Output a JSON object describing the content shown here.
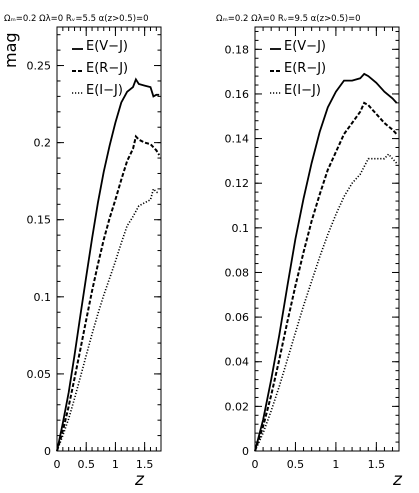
{
  "figure": {
    "ylabel": "mag",
    "xlabel": "z"
  },
  "chart_data": [
    {
      "type": "line",
      "title": "Ωₘ=0.2 Ωλ=0 Rᵥ=5.5 α(z>0.5)=0",
      "xlabel": "z",
      "ylabel": "mag",
      "xlim": [
        0,
        1.78
      ],
      "ylim": [
        0,
        0.275
      ],
      "x_ticks": [
        0,
        0.5,
        1,
        1.5
      ],
      "x_tick_labels": [
        "0",
        "0.5",
        "1",
        "1.5"
      ],
      "y_ticks": [
        0,
        0.05,
        0.1,
        0.15,
        0.2,
        0.25
      ],
      "y_tick_labels": [
        "0",
        "0.05",
        "0.1",
        "0.15",
        "0.2",
        "0.25"
      ],
      "grid": false,
      "legend_position": "top-center",
      "series": [
        {
          "name": "E(V−J)",
          "style": "solid",
          "x": [
            0,
            0.1,
            0.2,
            0.3,
            0.4,
            0.5,
            0.6,
            0.7,
            0.8,
            0.9,
            1.0,
            1.1,
            1.2,
            1.3,
            1.35,
            1.4,
            1.5,
            1.6,
            1.65,
            1.7,
            1.75
          ],
          "y": [
            0,
            0.018,
            0.038,
            0.062,
            0.088,
            0.113,
            0.138,
            0.161,
            0.181,
            0.198,
            0.213,
            0.226,
            0.233,
            0.236,
            0.241,
            0.238,
            0.237,
            0.236,
            0.23,
            0.231,
            0.231
          ]
        },
        {
          "name": "E(R−J)",
          "style": "dashed",
          "x": [
            0,
            0.1,
            0.2,
            0.3,
            0.4,
            0.5,
            0.6,
            0.7,
            0.8,
            0.9,
            1.0,
            1.1,
            1.2,
            1.3,
            1.35,
            1.4,
            1.5,
            1.6,
            1.7,
            1.75
          ],
          "y": [
            0,
            0.013,
            0.029,
            0.047,
            0.066,
            0.085,
            0.104,
            0.121,
            0.137,
            0.151,
            0.163,
            0.176,
            0.188,
            0.196,
            0.204,
            0.202,
            0.2,
            0.199,
            0.195,
            0.192
          ]
        },
        {
          "name": "E(I−J)",
          "style": "dotted",
          "x": [
            0,
            0.1,
            0.2,
            0.3,
            0.4,
            0.5,
            0.6,
            0.7,
            0.8,
            0.9,
            1.0,
            1.1,
            1.2,
            1.3,
            1.4,
            1.5,
            1.6,
            1.65,
            1.7,
            1.75
          ],
          "y": [
            0,
            0.01,
            0.021,
            0.034,
            0.048,
            0.062,
            0.076,
            0.089,
            0.101,
            0.112,
            0.123,
            0.135,
            0.146,
            0.152,
            0.159,
            0.161,
            0.163,
            0.17,
            0.168,
            0.167
          ]
        }
      ]
    },
    {
      "type": "line",
      "title": "Ωₘ=0.2 Ωλ=0 Rᵥ=9.5 α(z>0.5)=0",
      "xlabel": "z",
      "ylabel": "",
      "xlim": [
        0,
        1.78
      ],
      "ylim": [
        0,
        0.19
      ],
      "x_ticks": [
        0,
        0.5,
        1,
        1.5
      ],
      "x_tick_labels": [
        "0",
        "0.5",
        "1",
        "1.5"
      ],
      "y_ticks": [
        0,
        0.02,
        0.04,
        0.06,
        0.08,
        0.1,
        0.12,
        0.14,
        0.16,
        0.18
      ],
      "y_tick_labels": [
        "0",
        "0.02",
        "0.04",
        "0.06",
        "0.08",
        "0.1",
        "0.12",
        "0.14",
        "0.16",
        "0.18"
      ],
      "grid": false,
      "legend_position": "top-center",
      "series": [
        {
          "name": "E(V−J)",
          "style": "solid",
          "x": [
            0,
            0.1,
            0.2,
            0.3,
            0.4,
            0.5,
            0.6,
            0.7,
            0.8,
            0.9,
            1.0,
            1.1,
            1.2,
            1.3,
            1.35,
            1.4,
            1.5,
            1.6,
            1.7,
            1.75
          ],
          "y": [
            0,
            0.014,
            0.032,
            0.052,
            0.074,
            0.095,
            0.113,
            0.129,
            0.143,
            0.154,
            0.161,
            0.166,
            0.166,
            0.167,
            0.169,
            0.168,
            0.165,
            0.161,
            0.158,
            0.156
          ]
        },
        {
          "name": "E(R−J)",
          "style": "dashed",
          "x": [
            0,
            0.1,
            0.2,
            0.3,
            0.4,
            0.5,
            0.6,
            0.7,
            0.8,
            0.9,
            1.0,
            1.1,
            1.2,
            1.3,
            1.35,
            1.4,
            1.5,
            1.6,
            1.7,
            1.75
          ],
          "y": [
            0,
            0.011,
            0.025,
            0.041,
            0.058,
            0.074,
            0.089,
            0.103,
            0.115,
            0.126,
            0.134,
            0.142,
            0.147,
            0.152,
            0.156,
            0.155,
            0.151,
            0.147,
            0.144,
            0.142
          ]
        },
        {
          "name": "E(I−J)",
          "style": "dotted",
          "x": [
            0,
            0.1,
            0.2,
            0.3,
            0.4,
            0.5,
            0.6,
            0.7,
            0.8,
            0.9,
            1.0,
            1.1,
            1.2,
            1.3,
            1.4,
            1.5,
            1.6,
            1.65,
            1.7,
            1.75
          ],
          "y": [
            0,
            0.008,
            0.018,
            0.029,
            0.041,
            0.053,
            0.065,
            0.076,
            0.087,
            0.097,
            0.106,
            0.114,
            0.12,
            0.124,
            0.131,
            0.131,
            0.131,
            0.133,
            0.131,
            0.129
          ]
        }
      ]
    }
  ]
}
